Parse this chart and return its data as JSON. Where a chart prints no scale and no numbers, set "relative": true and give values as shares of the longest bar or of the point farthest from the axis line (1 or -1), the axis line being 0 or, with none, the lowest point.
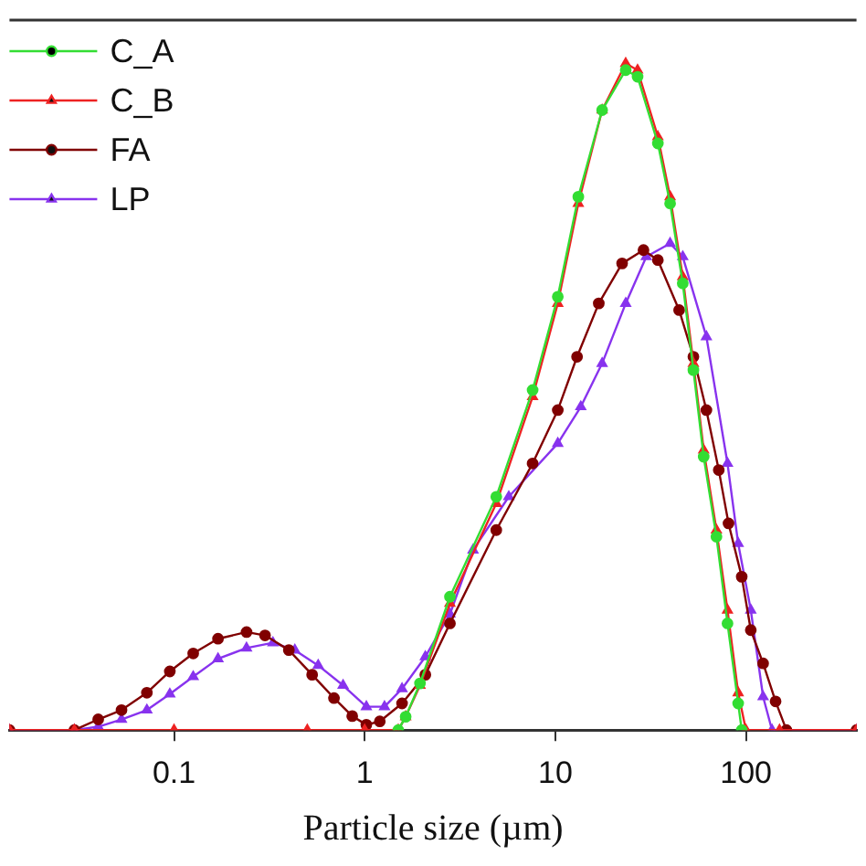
{
  "chart_data": {
    "type": "line",
    "xlabel": "Particle size (µm)",
    "relative": true,
    "log": "x",
    "xlim": [
      0.0137,
      380
    ],
    "xticks": [
      0.1,
      1,
      10,
      100
    ],
    "grid": false,
    "legend": "top left",
    "line_style": "solid",
    "series": [
      {
        "name": "C_A",
        "color": "#33dd33",
        "marker": "circle",
        "x": [
          1.5,
          1.64,
          1.95,
          2.8,
          4.9,
          7.6,
          10.3,
          13.2,
          17.6,
          23.4,
          27,
          34.5,
          40,
          46.6,
          53,
          60,
          70,
          80,
          91,
          95
        ],
        "values": [
          0,
          0.02,
          0.07,
          0.2,
          0.35,
          0.51,
          0.65,
          0.8,
          0.93,
          0.99,
          0.98,
          0.88,
          0.79,
          0.67,
          0.54,
          0.41,
          0.29,
          0.16,
          0.04,
          0
        ]
      },
      {
        "name": "C_B",
        "color": "#ee2222",
        "marker": "triangle",
        "x": [
          0.0137,
          0.03,
          0.1,
          0.5,
          1,
          1.5,
          1.64,
          1.95,
          2.8,
          4.9,
          7.6,
          10.3,
          13.2,
          17.6,
          23.4,
          27,
          34.5,
          40,
          46.6,
          53,
          60,
          70,
          80,
          91,
          100,
          150,
          380
        ],
        "values": [
          0,
          0,
          0,
          0,
          0,
          0,
          0.02,
          0.067,
          0.19,
          0.34,
          0.5,
          0.64,
          0.79,
          0.93,
          1,
          0.99,
          0.89,
          0.8,
          0.68,
          0.55,
          0.42,
          0.3,
          0.18,
          0.056,
          0,
          0,
          0
        ]
      },
      {
        "name": "FA",
        "color": "#800000",
        "marker": "circle",
        "x": [
          0.0137,
          0.03,
          0.04,
          0.053,
          0.072,
          0.095,
          0.126,
          0.17,
          0.24,
          0.3,
          0.4,
          0.53,
          0.69,
          0.86,
          1.02,
          1.2,
          1.57,
          2.08,
          2.8,
          4.9,
          7.6,
          10.3,
          13,
          16.9,
          22.4,
          29,
          34.5,
          44.6,
          53,
          62,
          72,
          81,
          95,
          106,
          123,
          143,
          163,
          380
        ],
        "values": [
          0,
          0,
          0.016,
          0.03,
          0.056,
          0.088,
          0.115,
          0.137,
          0.147,
          0.142,
          0.12,
          0.083,
          0.048,
          0.021,
          0.008,
          0.013,
          0.04,
          0.083,
          0.16,
          0.3,
          0.4,
          0.48,
          0.56,
          0.64,
          0.7,
          0.72,
          0.705,
          0.63,
          0.56,
          0.48,
          0.39,
          0.31,
          0.23,
          0.15,
          0.1,
          0.043,
          0,
          0
        ]
      },
      {
        "name": "LP",
        "color": "#8833ee",
        "marker": "triangle",
        "x": [
          0.0137,
          0.03,
          0.04,
          0.053,
          0.072,
          0.095,
          0.126,
          0.17,
          0.24,
          0.33,
          0.43,
          0.57,
          0.77,
          1.02,
          1.27,
          1.57,
          2.08,
          2.8,
          3.7,
          5.7,
          10.3,
          13.6,
          17.6,
          23.4,
          30,
          40,
          46.6,
          62,
          80,
          91,
          106,
          123,
          137,
          380
        ],
        "values": [
          0,
          0,
          0.005,
          0.016,
          0.03,
          0.054,
          0.08,
          0.107,
          0.123,
          0.131,
          0.12,
          0.097,
          0.067,
          0.035,
          0.035,
          0.062,
          0.11,
          0.174,
          0.27,
          0.35,
          0.43,
          0.485,
          0.55,
          0.64,
          0.71,
          0.73,
          0.71,
          0.59,
          0.4,
          0.28,
          0.18,
          0.05,
          0,
          0
        ]
      }
    ]
  }
}
